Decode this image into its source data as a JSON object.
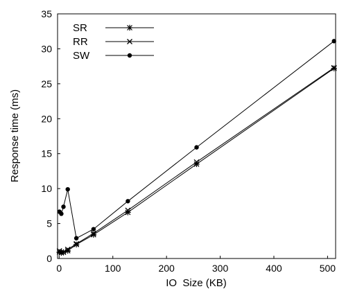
{
  "chart_data": {
    "type": "line",
    "xlabel": "IO  Size (KB)",
    "ylabel": "Response time (ms)",
    "xlim": [
      -3,
      515
    ],
    "ylim": [
      0,
      35
    ],
    "xticks": [
      0,
      100,
      200,
      300,
      400,
      500
    ],
    "yticks": [
      0,
      5,
      10,
      15,
      20,
      25,
      30,
      35
    ],
    "grid": false,
    "legend_position": "top-left",
    "series": [
      {
        "name": "SR",
        "marker": "asterisk",
        "x": [
          0.5,
          4,
          8,
          16,
          32,
          64,
          128,
          256,
          512
        ],
        "y": [
          0.9,
          0.8,
          0.9,
          1.1,
          2.0,
          3.4,
          6.6,
          13.5,
          27.2
        ]
      },
      {
        "name": "RR",
        "marker": "x",
        "x": [
          0.5,
          4,
          8,
          16,
          32,
          64,
          128,
          256,
          512
        ],
        "y": [
          1.1,
          0.9,
          0.9,
          1.3,
          2.1,
          3.6,
          6.9,
          13.8,
          27.3
        ]
      },
      {
        "name": "SW",
        "marker": "dot",
        "x": [
          0.5,
          4,
          8,
          16,
          32,
          64,
          128,
          256,
          512
        ],
        "y": [
          6.7,
          6.4,
          7.4,
          9.9,
          2.9,
          4.2,
          8.2,
          15.9,
          31.1
        ]
      }
    ]
  }
}
